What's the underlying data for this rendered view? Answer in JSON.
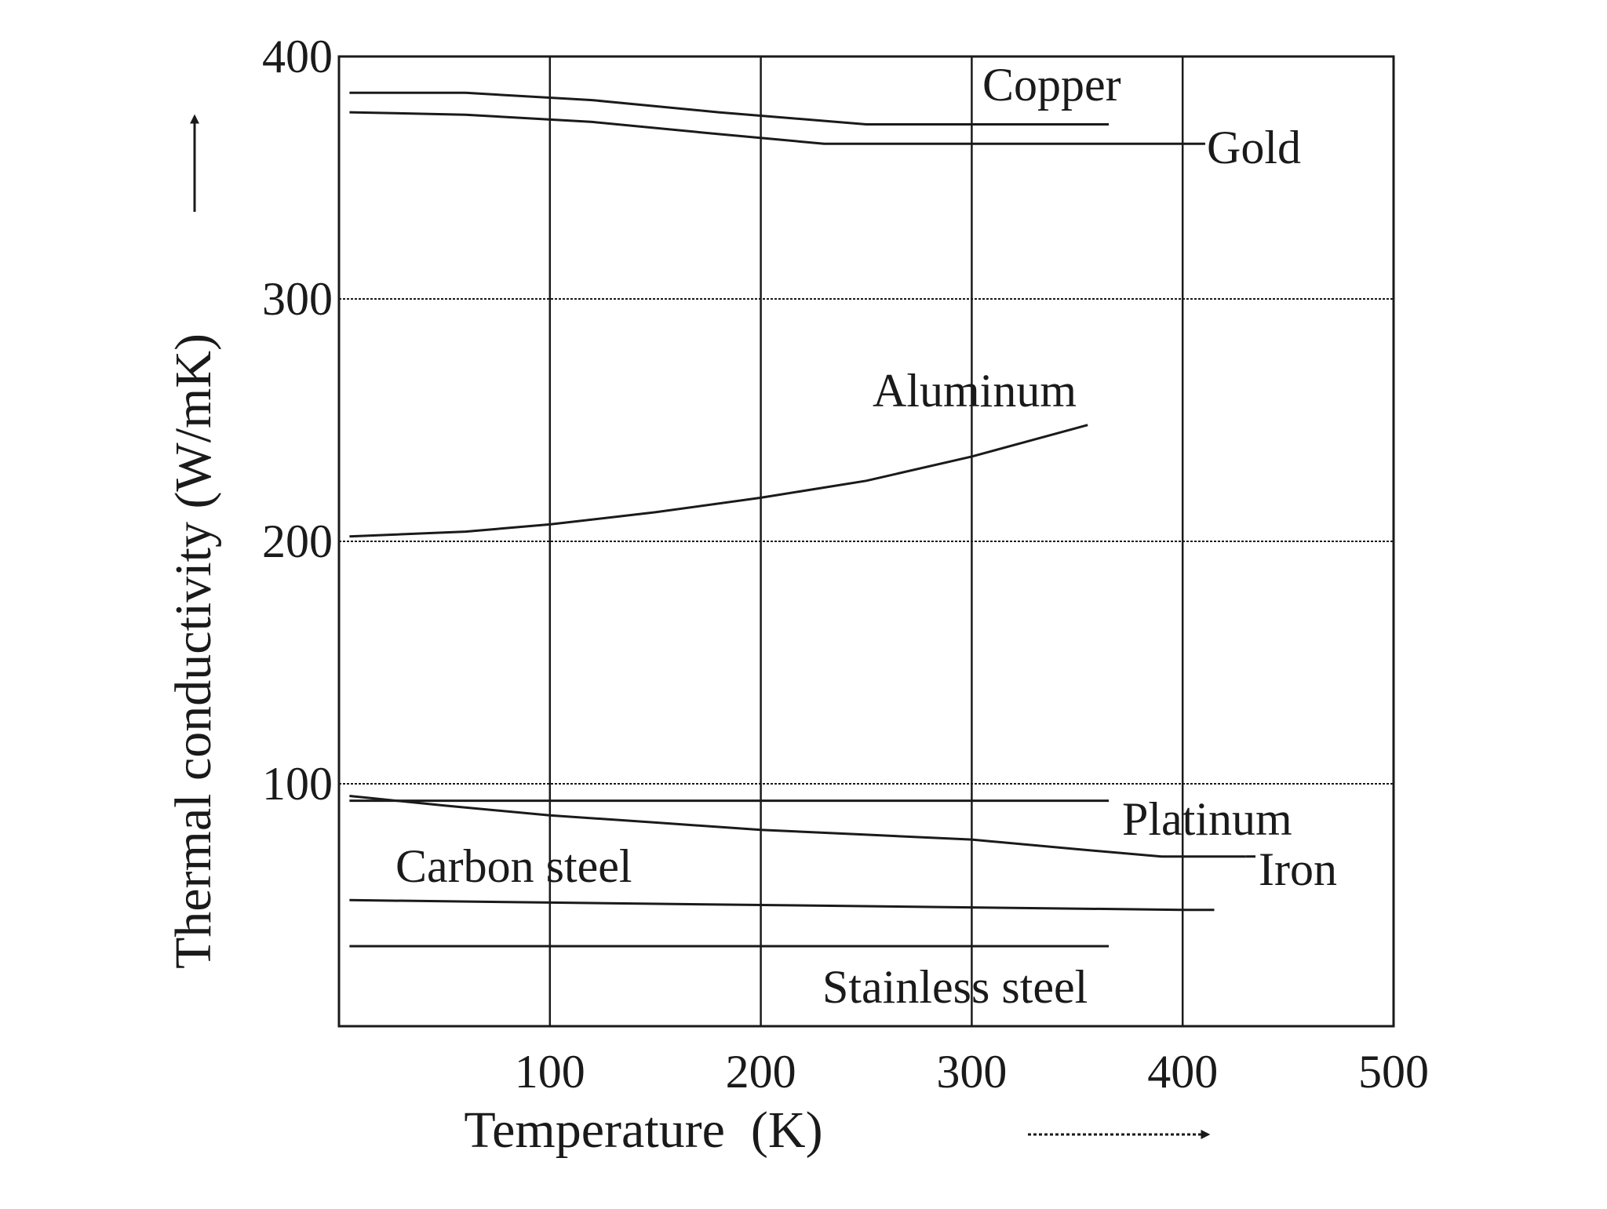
{
  "chart_data": {
    "type": "line",
    "title": "",
    "xlabel": "Temperature  (K)",
    "ylabel": "Thermal conductivity (W/mK)",
    "xlim": [
      0,
      500
    ],
    "ylim": [
      0,
      400
    ],
    "x_ticks": [
      "100",
      "200",
      "300",
      "400",
      "500"
    ],
    "y_ticks": [
      "100",
      "200",
      "300",
      "400"
    ],
    "grid": true,
    "axis_arrows": true,
    "line_color": "#1a1a1a",
    "series": [
      {
        "name": "Copper",
        "x": [
          5,
          60,
          120,
          180,
          250,
          300,
          365
        ],
        "y": [
          385,
          385,
          382,
          377,
          372,
          372,
          372
        ]
      },
      {
        "name": "Gold",
        "x": [
          5,
          60,
          120,
          180,
          230,
          300,
          400,
          410
        ],
        "y": [
          377,
          376,
          373,
          368,
          364,
          364,
          364,
          364
        ]
      },
      {
        "name": "Aluminum",
        "x": [
          5,
          60,
          100,
          150,
          200,
          250,
          300,
          355
        ],
        "y": [
          202,
          204,
          207,
          212,
          218,
          225,
          235,
          248
        ]
      },
      {
        "name": "Platinum",
        "x": [
          5,
          100,
          200,
          300,
          365
        ],
        "y": [
          93,
          93,
          93,
          93,
          93
        ]
      },
      {
        "name": "Iron",
        "x": [
          5,
          50,
          100,
          150,
          200,
          250,
          300,
          350,
          390,
          430
        ],
        "y": [
          95,
          91,
          87,
          84,
          81,
          79,
          77,
          73,
          70,
          70
        ]
      },
      {
        "name": "Carbon steel",
        "x": [
          5,
          100,
          200,
          300,
          400,
          415
        ],
        "y": [
          52,
          51,
          50,
          49,
          48,
          48
        ]
      },
      {
        "name": "Stainless steel",
        "x": [
          5,
          100,
          200,
          300,
          365
        ],
        "y": [
          33,
          33,
          33,
          33,
          33
        ]
      }
    ]
  }
}
